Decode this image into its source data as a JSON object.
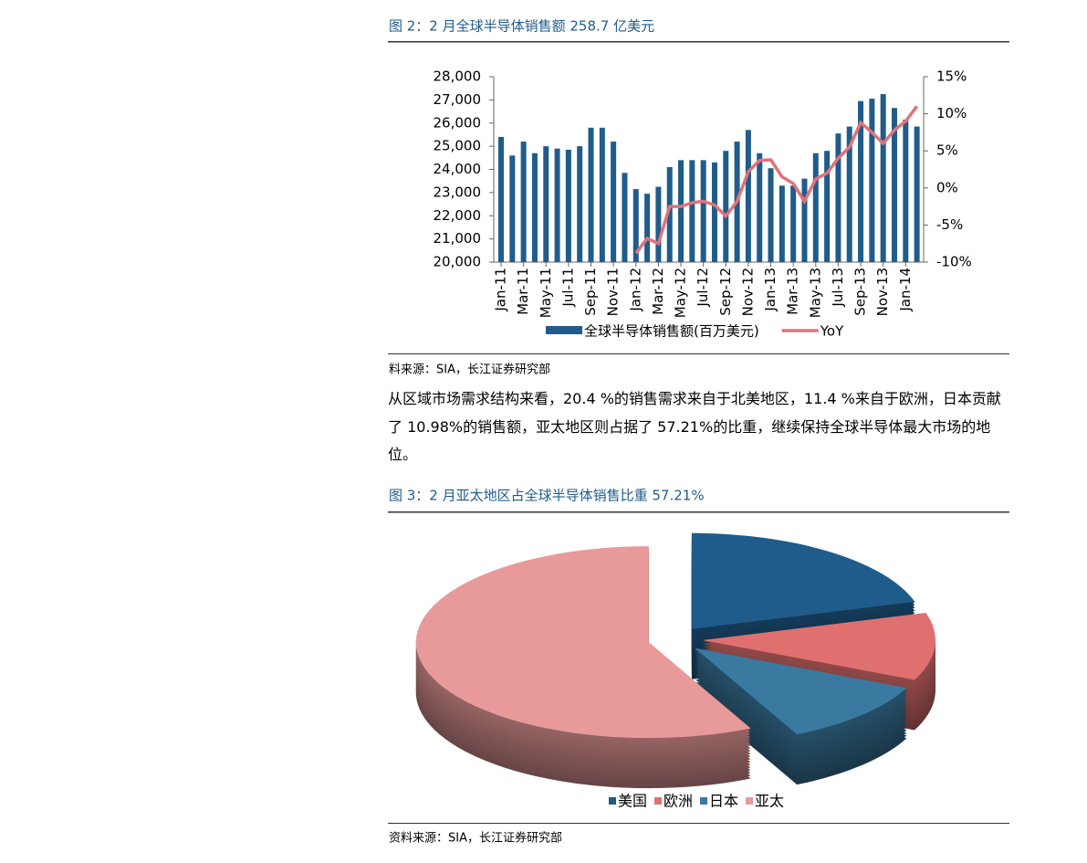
{
  "figure2_title": "图 2：2 月全球半导体销售额 258.7 亿美元",
  "source1": "料来源：SIA，长江证券研究部",
  "paragraph": "从区域市场需求结构来看，20.4 %的销售需求来自于北美地区，11.4 %来自于欧洲，日本贡献了 10.98%的销售额，亚太地区则占据了 57.21%的比重，继续保持全球半导体最大市场的地位。",
  "figure3_title": "图 3：2 月亚太地区占全球半导体销售比重 57.21%",
  "source2": "资料来源：SIA，长江证券研究部",
  "chart_data": [
    {
      "type": "bar-line",
      "categories": [
        "Jan-11",
        null,
        "Mar-11",
        null,
        "May-11",
        null,
        "Jul-11",
        null,
        "Sep-11",
        null,
        "Nov-11",
        null,
        "Jan-12",
        null,
        "Mar-12",
        null,
        "May-12",
        null,
        "Jul-12",
        null,
        "Sep-12",
        null,
        "Nov-12",
        null,
        "Jan-13",
        null,
        "Mar-13",
        null,
        "May-13",
        null,
        "Jul-13",
        null,
        "Sep-13",
        null,
        "Nov-13",
        null,
        "Jan-14",
        null
      ],
      "series": [
        {
          "name": "全球半导体销售额(百万美元)",
          "color": "#1f5c8b",
          "type": "bar",
          "values": [
            25400,
            24600,
            25200,
            24700,
            25000,
            24900,
            24850,
            25000,
            25800,
            25800,
            25200,
            23850,
            23150,
            22950,
            23250,
            24100,
            24400,
            24400,
            24400,
            24300,
            24800,
            25200,
            25700,
            24700,
            24050,
            23300,
            23300,
            23600,
            24700,
            24800,
            25550,
            25850,
            26950,
            27050,
            27250,
            26650,
            26150,
            25850
          ]
        },
        {
          "name": "YoY",
          "color": "#e07378",
          "type": "line",
          "axis": "y2",
          "values": [
            null,
            null,
            null,
            null,
            null,
            null,
            null,
            null,
            null,
            null,
            null,
            null,
            -8.8,
            -6.8,
            -7.5,
            -2.5,
            -2.5,
            -2,
            -1.8,
            -2.3,
            -3.8,
            -1.8,
            2.2,
            3.7,
            3.8,
            1.5,
            0.6,
            -1.8,
            1.2,
            2,
            4,
            5.5,
            8.8,
            7.5,
            6,
            7.8,
            9,
            11
          ]
        }
      ],
      "ylim": [
        20000,
        28000
      ],
      "yticks": [
        {
          "value": 20000,
          "label": "20,000"
        },
        {
          "value": 21000,
          "label": "21,000"
        },
        {
          "value": 22000,
          "label": "22,000"
        },
        {
          "value": 23000,
          "label": "23,000"
        },
        {
          "value": 24000,
          "label": "24,000"
        },
        {
          "value": 25000,
          "label": "25,000"
        },
        {
          "value": 26000,
          "label": "26,000"
        },
        {
          "value": 27000,
          "label": "27,000"
        },
        {
          "value": 28000,
          "label": "28,000"
        }
      ],
      "y2lim": [
        -10,
        15
      ],
      "y2ticks": [
        {
          "value": -10,
          "label": "-10%"
        },
        {
          "value": -5,
          "label": "-5%"
        },
        {
          "value": 0,
          "label": "0%"
        },
        {
          "value": 5,
          "label": "5%"
        },
        {
          "value": 10,
          "label": "10%"
        },
        {
          "value": 15,
          "label": "15%"
        }
      ],
      "legend": "bottom"
    },
    {
      "type": "pie",
      "categories": [
        "美国",
        "欧洲",
        "日本",
        "亚太"
      ],
      "values": [
        20.4,
        11.4,
        10.98,
        57.21
      ],
      "colors": [
        "#1f5c8b",
        "#e07070",
        "#3a7aa0",
        "#e89a9a"
      ],
      "legend": "bottom"
    }
  ]
}
